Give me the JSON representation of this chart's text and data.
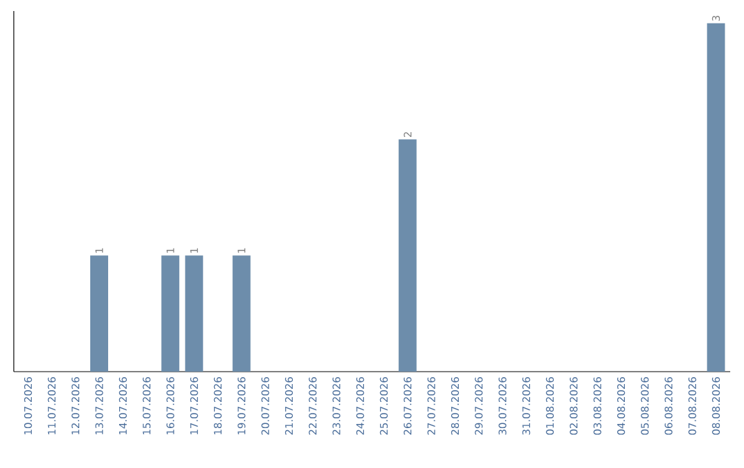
{
  "chart_data": {
    "type": "bar",
    "categories": [
      "10.07.2026",
      "11.07.2026",
      "12.07.2026",
      "13.07.2026",
      "14.07.2026",
      "15.07.2026",
      "16.07.2026",
      "17.07.2026",
      "18.07.2026",
      "19.07.2026",
      "20.07.2026",
      "21.07.2026",
      "22.07.2026",
      "23.07.2026",
      "24.07.2026",
      "25.07.2026",
      "26.07.2026",
      "27.07.2026",
      "28.07.2026",
      "29.07.2026",
      "30.07.2026",
      "31.07.2026",
      "01.08.2026",
      "02.08.2026",
      "03.08.2026",
      "04.08.2026",
      "05.08.2026",
      "06.08.2026",
      "07.08.2026",
      "08.08.2026"
    ],
    "values": [
      0,
      0,
      0,
      1,
      0,
      0,
      1,
      1,
      0,
      1,
      0,
      0,
      0,
      0,
      0,
      0,
      2,
      0,
      0,
      0,
      0,
      0,
      0,
      0,
      0,
      0,
      0,
      0,
      0,
      3
    ],
    "value_labels": [
      null,
      null,
      null,
      "1",
      null,
      null,
      "1",
      "1",
      null,
      "1",
      null,
      null,
      null,
      null,
      null,
      null,
      "2",
      null,
      null,
      null,
      null,
      null,
      null,
      null,
      null,
      null,
      null,
      null,
      null,
      "3"
    ],
    "color": "#6d8dab",
    "ylim": [
      0,
      3
    ],
    "tick_labels": "x",
    "grid": false
  }
}
